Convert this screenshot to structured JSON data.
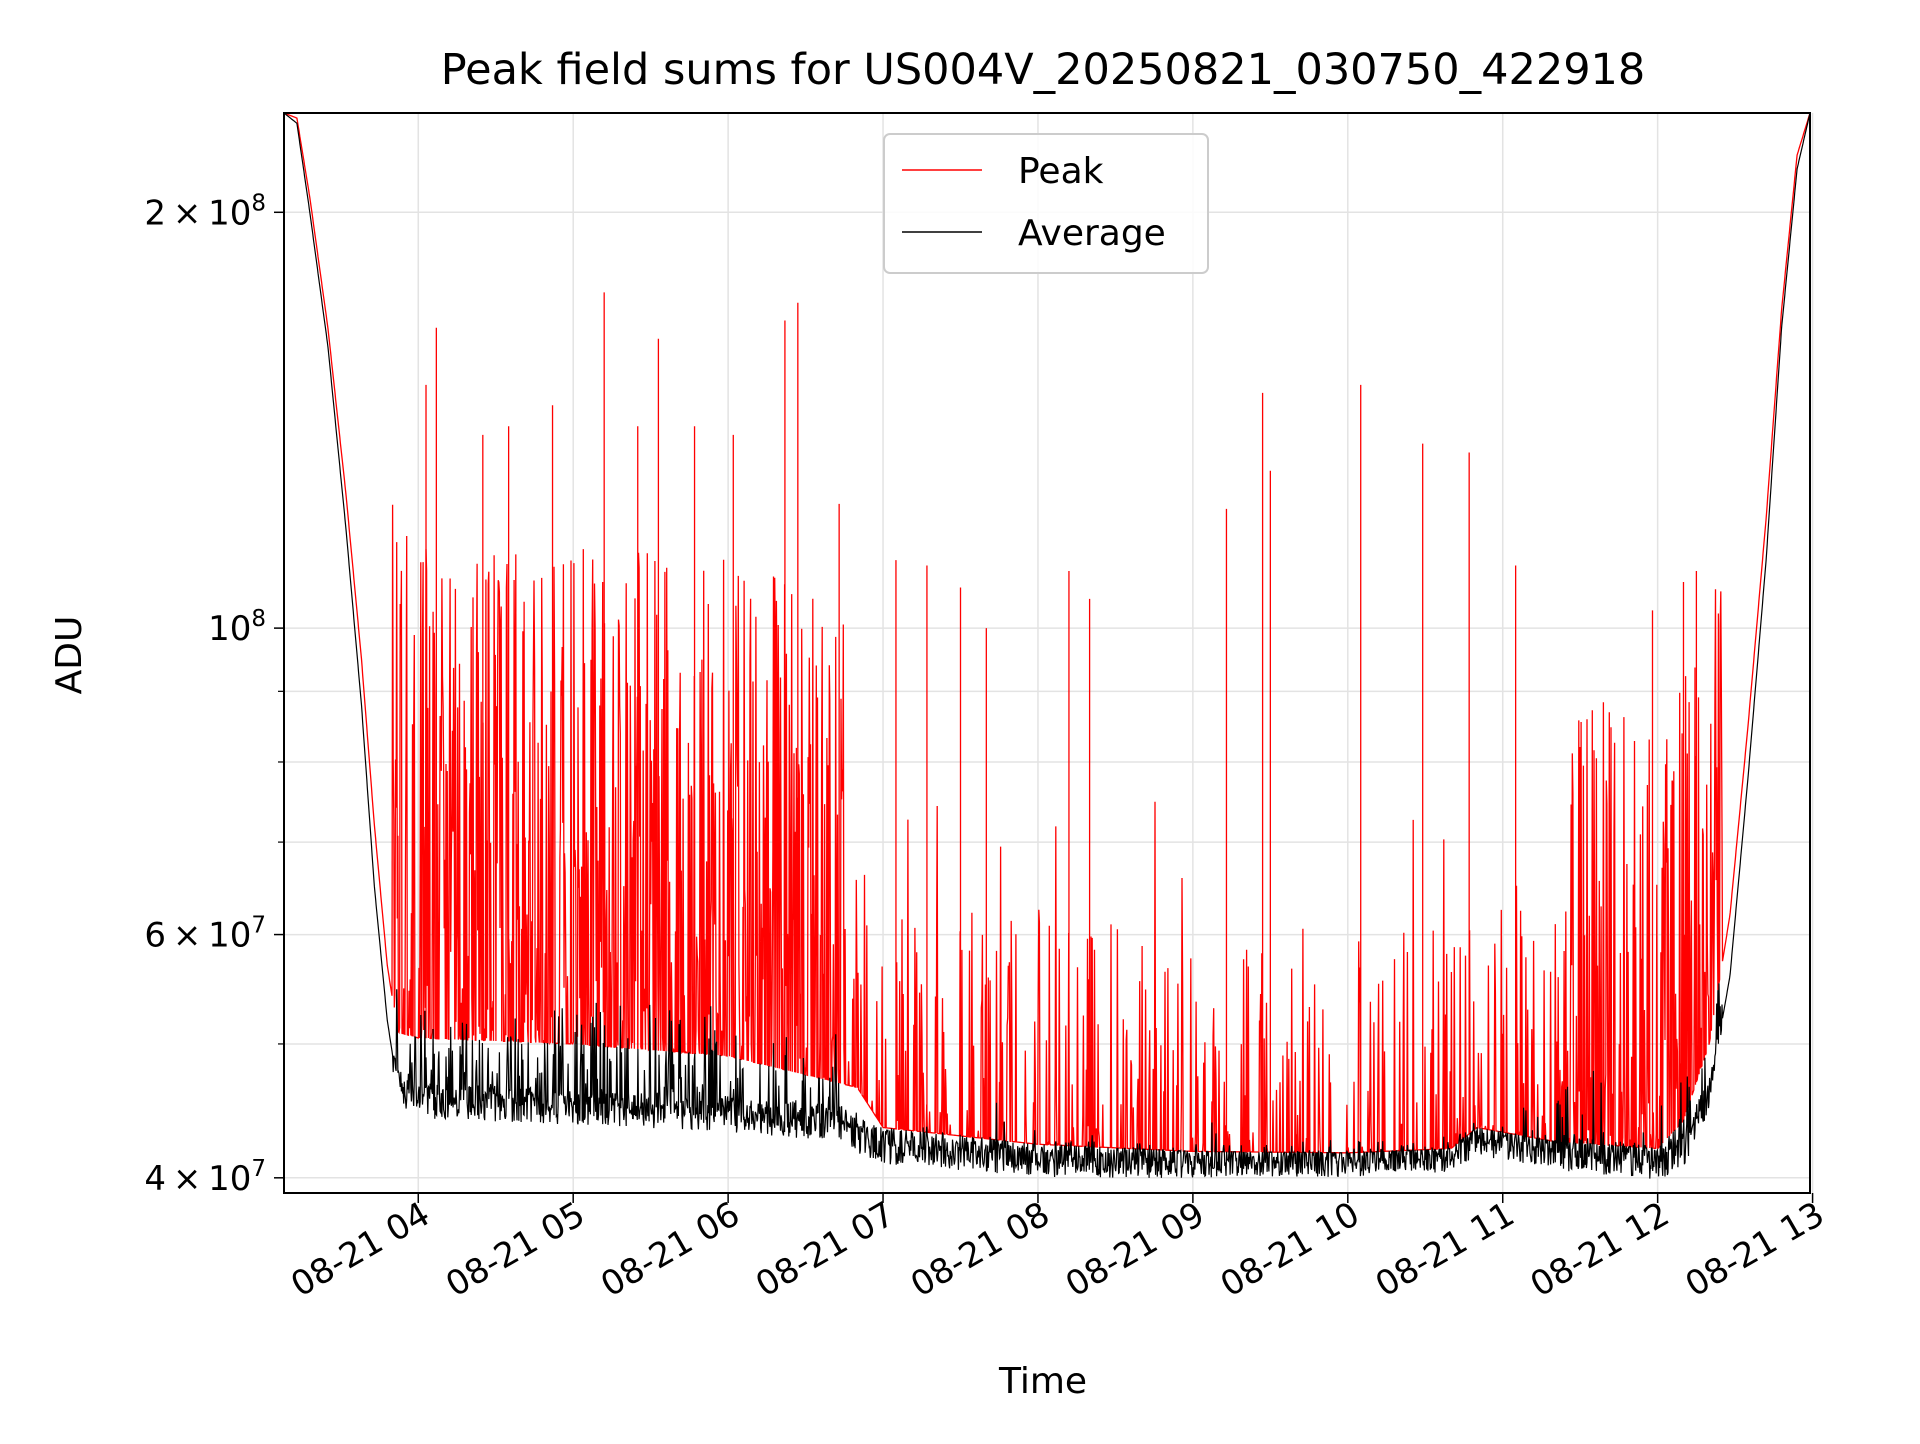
{
  "chart_data": {
    "type": "line",
    "title": "Peak field sums for US004V_20250821_030750_422918",
    "xlabel": "Time",
    "ylabel": "ADU",
    "y_scale": "log",
    "ylim": [
      39000000,
      236000000
    ],
    "xlim": [
      "2025-08-21 03:08",
      "2025-08-21 12:59"
    ],
    "grid": true,
    "legend": "upper center",
    "x_ticks": [
      "2025-08-21 04:00",
      "2025-08-21 05:00",
      "2025-08-21 06:00",
      "2025-08-21 07:00",
      "2025-08-21 08:00",
      "2025-08-21 09:00",
      "2025-08-21 10:00",
      "2025-08-21 11:00",
      "2025-08-21 12:00",
      "2025-08-21 13:00"
    ],
    "x_tick_labels": [
      "08-21 04",
      "08-21 05",
      "08-21 06",
      "08-21 07",
      "08-21 08",
      "08-21 09",
      "08-21 10",
      "08-21 11",
      "08-21 12",
      "08-21 13"
    ],
    "y_major_ticks": [
      {
        "value": 40000000,
        "mantissa": "4",
        "base": "10",
        "exp": "7"
      },
      {
        "value": 60000000,
        "mantissa": "6",
        "base": "10",
        "exp": "7"
      },
      {
        "value": 100000000,
        "mantissa": "",
        "base": "10",
        "exp": "8"
      },
      {
        "value": 200000000,
        "mantissa": "2",
        "base": "10",
        "exp": "8"
      }
    ],
    "y_minor_ticks": [
      50000000,
      70000000,
      80000000,
      90000000
    ],
    "series": [
      {
        "name": "Peak",
        "color": "#ff0000",
        "baseline": [
          [
            "2025-08-21 03:08",
            236000000
          ],
          [
            "2025-08-21 03:13",
            234000000
          ],
          [
            "2025-08-21 03:18",
            205000000
          ],
          [
            "2025-08-21 03:25",
            165000000
          ],
          [
            "2025-08-21 03:32",
            125000000
          ],
          [
            "2025-08-21 03:38",
            95000000
          ],
          [
            "2025-08-21 03:43",
            72000000
          ],
          [
            "2025-08-21 03:48",
            57000000
          ],
          [
            "2025-08-21 03:52",
            51000000
          ],
          [
            "2025-08-21 04:00",
            50500000
          ],
          [
            "2025-08-21 05:00",
            50000000
          ],
          [
            "2025-08-21 06:00",
            49000000
          ],
          [
            "2025-08-21 06:50",
            46500000
          ],
          [
            "2025-08-21 07:00",
            43500000
          ],
          [
            "2025-08-21 08:00",
            42300000
          ],
          [
            "2025-08-21 09:00",
            41800000
          ],
          [
            "2025-08-21 10:00",
            41700000
          ],
          [
            "2025-08-21 10:40",
            42000000
          ],
          [
            "2025-08-21 10:50",
            43500000
          ],
          [
            "2025-08-21 11:20",
            42500000
          ],
          [
            "2025-08-21 12:00",
            42000000
          ],
          [
            "2025-08-21 12:10",
            44000000
          ],
          [
            "2025-08-21 12:20",
            50000000
          ],
          [
            "2025-08-21 12:28",
            62000000
          ],
          [
            "2025-08-21 12:35",
            85000000
          ],
          [
            "2025-08-21 12:42",
            120000000
          ],
          [
            "2025-08-21 12:48",
            170000000
          ],
          [
            "2025-08-21 12:54",
            220000000
          ],
          [
            "2025-08-21 12:59",
            236000000
          ]
        ],
        "peaks": [
          [
            "2025-08-21 04:03",
            150000000
          ],
          [
            "2025-08-21 04:07",
            165000000
          ],
          [
            "2025-08-21 04:25",
            138000000
          ],
          [
            "2025-08-21 04:35",
            140000000
          ],
          [
            "2025-08-21 04:52",
            145000000
          ],
          [
            "2025-08-21 05:12",
            175000000
          ],
          [
            "2025-08-21 05:25",
            140000000
          ],
          [
            "2025-08-21 05:33",
            162000000
          ],
          [
            "2025-08-21 05:47",
            140000000
          ],
          [
            "2025-08-21 06:02",
            138000000
          ],
          [
            "2025-08-21 06:22",
            167000000
          ],
          [
            "2025-08-21 06:27",
            172000000
          ],
          [
            "2025-08-21 06:43",
            123000000
          ],
          [
            "2025-08-21 07:05",
            112000000
          ],
          [
            "2025-08-21 07:17",
            111000000
          ],
          [
            "2025-08-21 07:30",
            107000000
          ],
          [
            "2025-08-21 07:40",
            100000000
          ],
          [
            "2025-08-21 08:12",
            110000000
          ],
          [
            "2025-08-21 08:20",
            105000000
          ],
          [
            "2025-08-21 09:13",
            122000000
          ],
          [
            "2025-08-21 09:27",
            148000000
          ],
          [
            "2025-08-21 09:30",
            130000000
          ],
          [
            "2025-08-21 10:05",
            150000000
          ],
          [
            "2025-08-21 10:29",
            136000000
          ],
          [
            "2025-08-21 10:47",
            134000000
          ],
          [
            "2025-08-21 11:05",
            111000000
          ],
          [
            "2025-08-21 11:58",
            103000000
          ],
          [
            "2025-08-21 12:10",
            108000000
          ],
          [
            "2025-08-21 12:15",
            110000000
          ]
        ]
      },
      {
        "name": "Average",
        "color": "#000000",
        "baseline": [
          [
            "2025-08-21 03:08",
            236000000
          ],
          [
            "2025-08-21 03:13",
            232000000
          ],
          [
            "2025-08-21 03:18",
            200000000
          ],
          [
            "2025-08-21 03:25",
            160000000
          ],
          [
            "2025-08-21 03:32",
            118000000
          ],
          [
            "2025-08-21 03:38",
            88000000
          ],
          [
            "2025-08-21 03:43",
            65000000
          ],
          [
            "2025-08-21 03:48",
            52000000
          ],
          [
            "2025-08-21 03:52",
            46500000
          ],
          [
            "2025-08-21 04:00",
            45500000
          ],
          [
            "2025-08-21 05:00",
            45000000
          ],
          [
            "2025-08-21 06:00",
            44500000
          ],
          [
            "2025-08-21 06:45",
            43800000
          ],
          [
            "2025-08-21 06:50",
            43000000
          ],
          [
            "2025-08-21 07:00",
            42200000
          ],
          [
            "2025-08-21 08:00",
            41300000
          ],
          [
            "2025-08-21 09:00",
            41200000
          ],
          [
            "2025-08-21 10:00",
            41300000
          ],
          [
            "2025-08-21 10:40",
            41600000
          ],
          [
            "2025-08-21 10:50",
            42800000
          ],
          [
            "2025-08-21 11:20",
            41800000
          ],
          [
            "2025-08-21 12:00",
            41000000
          ],
          [
            "2025-08-21 12:10",
            42000000
          ],
          [
            "2025-08-21 12:20",
            46000000
          ],
          [
            "2025-08-21 12:28",
            56000000
          ],
          [
            "2025-08-21 12:35",
            78000000
          ],
          [
            "2025-08-21 12:42",
            112000000
          ],
          [
            "2025-08-21 12:48",
            165000000
          ],
          [
            "2025-08-21 12:54",
            215000000
          ],
          [
            "2025-08-21 12:59",
            236000000
          ]
        ]
      }
    ]
  }
}
